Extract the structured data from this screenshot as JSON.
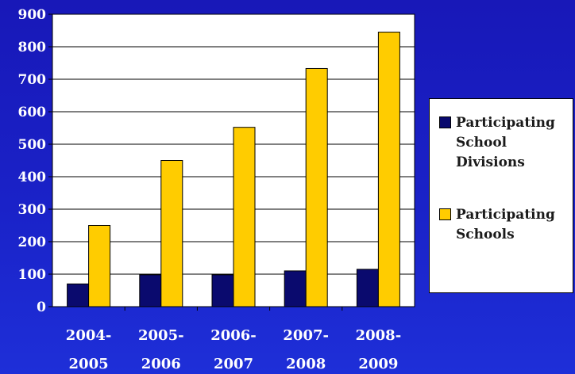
{
  "chart_data": {
    "type": "bar",
    "categories": [
      "2004-2005",
      "2005-2006",
      "2006-2007",
      "2007-2008",
      "2008-2009"
    ],
    "category_lines": [
      [
        "2004-",
        "2005"
      ],
      [
        "2005-",
        "2006"
      ],
      [
        "2006-",
        "2007"
      ],
      [
        "2007-",
        "2008"
      ],
      [
        "2008-",
        "2009"
      ]
    ],
    "series": [
      {
        "name": "Participating School Divisions",
        "values": [
          70,
          98,
          98,
          110,
          115
        ],
        "color": "#0a0a6e"
      },
      {
        "name": "Participating Schools",
        "values": [
          250,
          450,
          552,
          733,
          845
        ],
        "color": "#ffcc00"
      }
    ],
    "ylim": [
      0,
      900
    ],
    "yticks": [
      "0",
      "100",
      "200",
      "300",
      "400",
      "500",
      "600",
      "700",
      "800",
      "900"
    ],
    "grid": true,
    "legend_position": "right",
    "plot_background": "#ffffff"
  },
  "legend": {
    "item1": "Participating School Divisions",
    "item2": "Participating Schools",
    "item1_color": "#0a0a6e",
    "item2_color": "#ffcc00"
  }
}
